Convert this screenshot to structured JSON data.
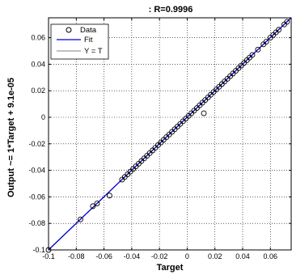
{
  "chart_data": {
    "type": "scatter",
    "title": ": R=0.9996",
    "xlabel": "Target",
    "ylabel": "Output ~= 1*Target + 9.1e-05",
    "xlim": [
      -0.1,
      0.075
    ],
    "ylim": [
      -0.1,
      0.075
    ],
    "x_ticks": [
      -0.1,
      -0.08,
      -0.06,
      -0.04,
      -0.02,
      0,
      0.02,
      0.04,
      0.06
    ],
    "x_tick_labels": [
      "-0.1",
      "-0.08",
      "-0.06",
      "-0.04",
      "-0.02",
      "0",
      "0.02",
      "0.04",
      "0.06"
    ],
    "y_ticks": [
      -0.1,
      -0.08,
      -0.06,
      -0.04,
      -0.02,
      0,
      0.02,
      0.04,
      0.06
    ],
    "y_tick_labels": [
      "-0.1",
      "-0.08",
      "-0.06",
      "-0.04",
      "-0.02",
      "0",
      "0.02",
      "0.04",
      "0.06"
    ],
    "grid": true,
    "legend_position": "top-left",
    "legend": [
      {
        "label": "Data",
        "marker": "circle",
        "color": "#000000"
      },
      {
        "label": "Fit",
        "line": "solid",
        "color": "#0000cc"
      },
      {
        "label": "Y = T",
        "line": "solid",
        "color": "#999999"
      }
    ],
    "fit_line": {
      "slope": 1,
      "intercept": 9.1e-05
    },
    "series": [
      {
        "name": "Data",
        "points": [
          [
            -0.1,
            -0.1
          ],
          [
            -0.077,
            -0.077
          ],
          [
            -0.068,
            -0.067
          ],
          [
            -0.065,
            -0.065
          ],
          [
            -0.056,
            -0.059
          ],
          [
            -0.047,
            -0.047
          ],
          [
            -0.045,
            -0.045
          ],
          [
            -0.043,
            -0.043
          ],
          [
            -0.041,
            -0.041
          ],
          [
            -0.039,
            -0.039
          ],
          [
            -0.037,
            -0.037
          ],
          [
            -0.035,
            -0.035
          ],
          [
            -0.033,
            -0.033
          ],
          [
            -0.031,
            -0.031
          ],
          [
            -0.029,
            -0.029
          ],
          [
            -0.027,
            -0.027
          ],
          [
            -0.025,
            -0.025
          ],
          [
            -0.023,
            -0.023
          ],
          [
            -0.021,
            -0.021
          ],
          [
            -0.019,
            -0.019
          ],
          [
            -0.017,
            -0.017
          ],
          [
            -0.015,
            -0.015
          ],
          [
            -0.013,
            -0.013
          ],
          [
            -0.011,
            -0.011
          ],
          [
            -0.009,
            -0.009
          ],
          [
            -0.007,
            -0.007
          ],
          [
            -0.005,
            -0.005
          ],
          [
            -0.003,
            -0.003
          ],
          [
            -0.001,
            -0.001
          ],
          [
            0.001,
            0.001
          ],
          [
            0.003,
            0.003
          ],
          [
            0.005,
            0.005
          ],
          [
            0.007,
            0.007
          ],
          [
            0.009,
            0.009
          ],
          [
            0.011,
            0.011
          ],
          [
            0.012,
            0.003
          ],
          [
            0.013,
            0.013
          ],
          [
            0.015,
            0.015
          ],
          [
            0.017,
            0.017
          ],
          [
            0.019,
            0.019
          ],
          [
            0.021,
            0.021
          ],
          [
            0.023,
            0.023
          ],
          [
            0.025,
            0.025
          ],
          [
            0.027,
            0.027
          ],
          [
            0.029,
            0.029
          ],
          [
            0.031,
            0.031
          ],
          [
            0.033,
            0.033
          ],
          [
            0.035,
            0.035
          ],
          [
            0.037,
            0.037
          ],
          [
            0.039,
            0.039
          ],
          [
            0.041,
            0.041
          ],
          [
            0.043,
            0.043
          ],
          [
            0.045,
            0.045
          ],
          [
            0.047,
            0.047
          ],
          [
            0.051,
            0.051
          ],
          [
            0.055,
            0.055
          ],
          [
            0.057,
            0.057
          ],
          [
            0.06,
            0.06
          ],
          [
            0.062,
            0.062
          ],
          [
            0.064,
            0.064
          ],
          [
            0.066,
            0.066
          ],
          [
            0.07,
            0.07
          ],
          [
            0.072,
            0.072
          ]
        ]
      }
    ]
  }
}
